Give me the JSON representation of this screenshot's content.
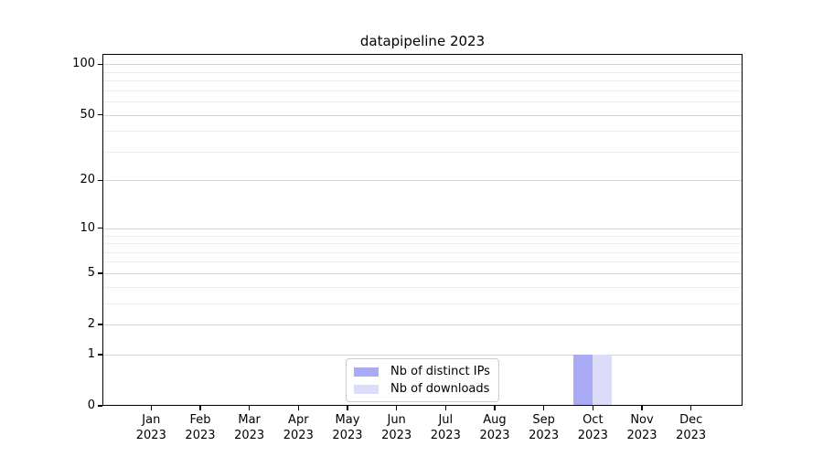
{
  "title": "datapipeline 2023",
  "chart_data": {
    "type": "bar",
    "title": "datapipeline 2023",
    "categories": [
      "Jan 2023",
      "Feb 2023",
      "Mar 2023",
      "Apr 2023",
      "May 2023",
      "Jun 2023",
      "Jul 2023",
      "Aug 2023",
      "Sep 2023",
      "Oct 2023",
      "Nov 2023",
      "Dec 2023"
    ],
    "x_tick_line1": [
      "Jan",
      "Feb",
      "Mar",
      "Apr",
      "May",
      "Jun",
      "Jul",
      "Aug",
      "Sep",
      "Oct",
      "Nov",
      "Dec"
    ],
    "x_tick_line2": [
      "2023",
      "2023",
      "2023",
      "2023",
      "2023",
      "2023",
      "2023",
      "2023",
      "2023",
      "2023",
      "2023",
      "2023"
    ],
    "series": [
      {
        "name": "Nb of distinct IPs",
        "color": "#aaaaf6",
        "values": [
          0,
          0,
          0,
          0,
          0,
          0,
          0,
          0,
          0,
          1,
          0,
          0
        ]
      },
      {
        "name": "Nb of downloads",
        "color": "#dcdcf8",
        "values": [
          0,
          0,
          0,
          0,
          0,
          0,
          0,
          0,
          0,
          1,
          0,
          0
        ]
      }
    ],
    "xlabel": "",
    "ylabel": "",
    "yscale": "log1p",
    "ylim": [
      0,
      115
    ],
    "y_major_ticks": [
      0,
      1,
      2,
      5,
      10,
      20,
      50,
      100
    ],
    "y_minor_ticks": [
      3,
      4,
      6,
      7,
      8,
      9,
      30,
      40,
      60,
      70,
      80,
      90
    ],
    "grid": "horizontal",
    "legend_position": "lower center inside"
  },
  "colors": {
    "grid_major": "#d4d4d4",
    "grid_minor": "#ececec",
    "spine": "#000000",
    "background": "#ffffff",
    "legend_border": "#cccccc"
  }
}
